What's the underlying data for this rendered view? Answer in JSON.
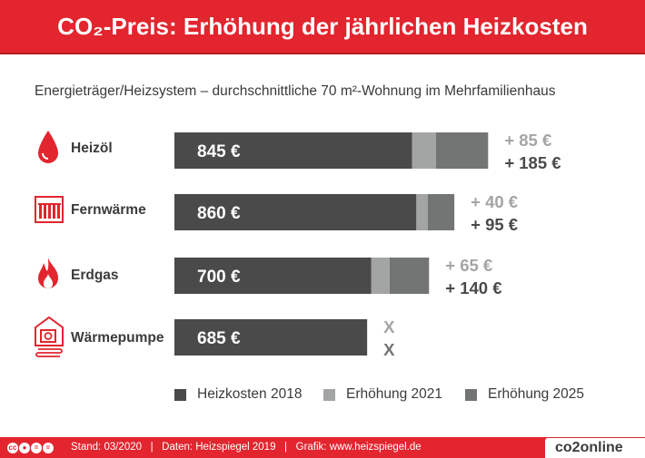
{
  "header": {
    "title": "CO₂-Preis: Erhöhung der jährlichen Heizkosten"
  },
  "subtitle": "Energieträger/Heizsystem – durchschnittliche 70 m²-Wohnung im Mehrfamilienhaus",
  "colors": {
    "brand": "#e2252e",
    "base": "#4a4a4a",
    "inc2021": "#a3a5a4",
    "inc2025": "#727574",
    "text": "#3b3b3b"
  },
  "categories": [
    {
      "label": "Heizöl",
      "icon": "oil-drop-icon"
    },
    {
      "label": "Fernwärme",
      "icon": "radiator-icon"
    },
    {
      "label": "Erdgas",
      "icon": "flame-icon"
    },
    {
      "label": "Wärmepumpe",
      "icon": "heat-pump-icon"
    }
  ],
  "chart_data": {
    "type": "bar",
    "orientation": "horizontal",
    "stacked": true,
    "title": "CO₂-Preis: Erhöhung der jährlichen Heizkosten",
    "subtitle": "Energieträger/Heizsystem – durchschnittliche 70 m²-Wohnung im Mehrfamilienhaus",
    "categories": [
      "Heizöl",
      "Fernwärme",
      "Erdgas",
      "Wärmepumpe"
    ],
    "unit": "€",
    "series": [
      {
        "name": "Heizkosten 2018",
        "values": [
          845,
          860,
          700,
          685
        ]
      },
      {
        "name": "Erhöhung 2021",
        "values": [
          85,
          40,
          65,
          0
        ]
      },
      {
        "name": "Erhöhung 2025",
        "values": [
          185,
          95,
          140,
          0
        ]
      }
    ],
    "data_labels": {
      "base": [
        "845 €",
        "860 €",
        "700 €",
        "685 €"
      ],
      "inc2021": [
        "+ 85 €",
        "+ 40 €",
        "+ 65 €",
        "X"
      ],
      "inc2025": [
        "+ 185 €",
        "+ 95 €",
        "+ 140 €",
        "X"
      ]
    },
    "legend": [
      "Heizkosten 2018",
      "Erhöhung 2021",
      "Erhöhung 2025"
    ],
    "legend_position": "bottom",
    "grid": false
  },
  "footer": {
    "license_icons": [
      "cc",
      "by",
      "nd",
      "eq"
    ],
    "text": "Stand: 03/2020   |   Daten: Heizspiegel 2019   |   Grafik: www.heizspiegel.de",
    "logo": "co2online"
  }
}
